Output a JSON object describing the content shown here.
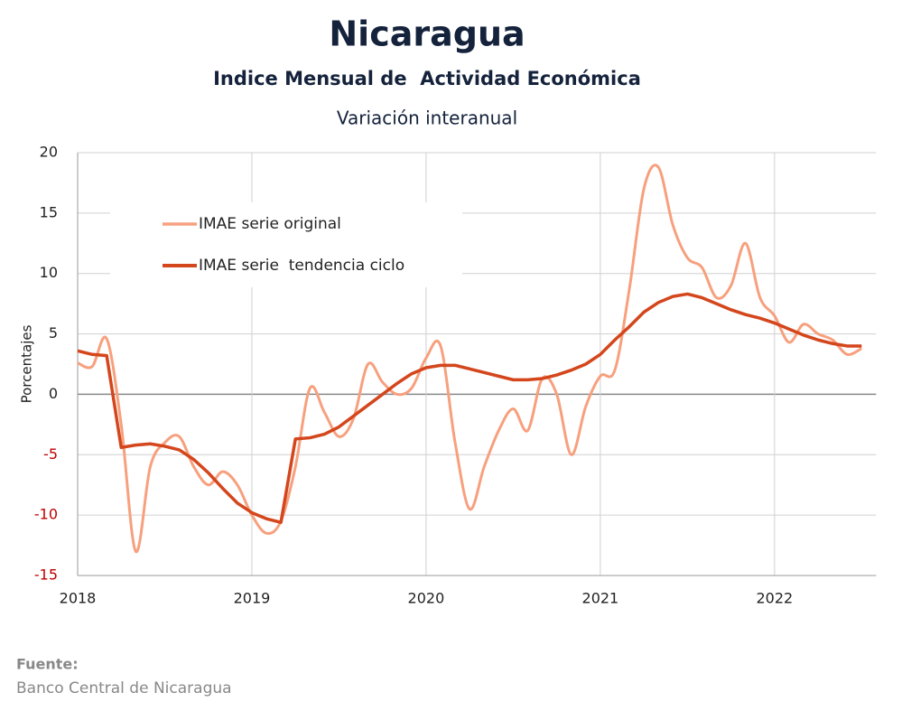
{
  "chart_data": {
    "type": "line",
    "title": "Nicaragua",
    "subtitle": "Indice Mensual de  Actividad Económica",
    "subtitle2": "Variación interanual",
    "ylabel": "Porcentajes",
    "source_label": "Fuente:",
    "source": "Banco Central de Nicaragua",
    "categories": [
      "2018",
      null,
      null,
      null,
      null,
      null,
      null,
      null,
      null,
      null,
      null,
      null,
      "2019",
      null,
      null,
      null,
      null,
      null,
      null,
      null,
      null,
      null,
      null,
      null,
      "2020",
      null,
      null,
      null,
      null,
      null,
      null,
      null,
      null,
      null,
      null,
      null,
      "2021",
      null,
      null,
      null,
      null,
      null,
      null,
      null,
      null,
      null,
      null,
      null,
      "2022",
      null,
      null,
      null,
      null,
      null,
      null
    ],
    "series": [
      {
        "name": "IMAE serie original",
        "color": "#f7a07e",
        "values": [
          2.6,
          2.3,
          4.6,
          -2.5,
          -13,
          -6,
          -4,
          -3.5,
          -6,
          -7.5,
          -6.4,
          -7.5,
          -10,
          -11.5,
          -10.5,
          -6,
          0.5,
          -1.5,
          -3.5,
          -2,
          2.5,
          1,
          0,
          0.5,
          3,
          4,
          -4,
          -9.5,
          -6,
          -3,
          -1.2,
          -3,
          1.3,
          0,
          -5,
          -1,
          1.5,
          2,
          8.7,
          17,
          18.8,
          14,
          11.3,
          10.5,
          8,
          9,
          12.5,
          8,
          6.5,
          4.3,
          5.8,
          5,
          4.5,
          3.3,
          3.8
        ]
      },
      {
        "name": "IMAE serie  tendencia ciclo",
        "color": "#d4461c",
        "values": [
          3.6,
          3.3,
          3.2,
          -4.4,
          -4.2,
          -4.1,
          -4.3,
          -4.6,
          -5.4,
          -6.5,
          -7.8,
          -9.0,
          -9.8,
          -10.3,
          -10.6,
          -3.7,
          -3.6,
          -3.3,
          -2.7,
          -1.8,
          -0.9,
          0,
          0.9,
          1.7,
          2.2,
          2.4,
          2.4,
          2.1,
          1.8,
          1.5,
          1.2,
          1.2,
          1.3,
          1.6,
          2.0,
          2.5,
          3.3,
          4.5,
          5.6,
          6.8,
          7.6,
          8.1,
          8.3,
          8.0,
          7.5,
          7.0,
          6.6,
          6.3,
          5.9,
          5.4,
          4.9,
          4.5,
          4.2,
          4.0,
          4.0
        ]
      }
    ],
    "ylim": [
      -15,
      20
    ],
    "yticks": [
      -15,
      -10,
      -5,
      0,
      5,
      10,
      15,
      20
    ],
    "negative_tick_color": "#c00000",
    "grid": true,
    "legend": "upper left"
  }
}
